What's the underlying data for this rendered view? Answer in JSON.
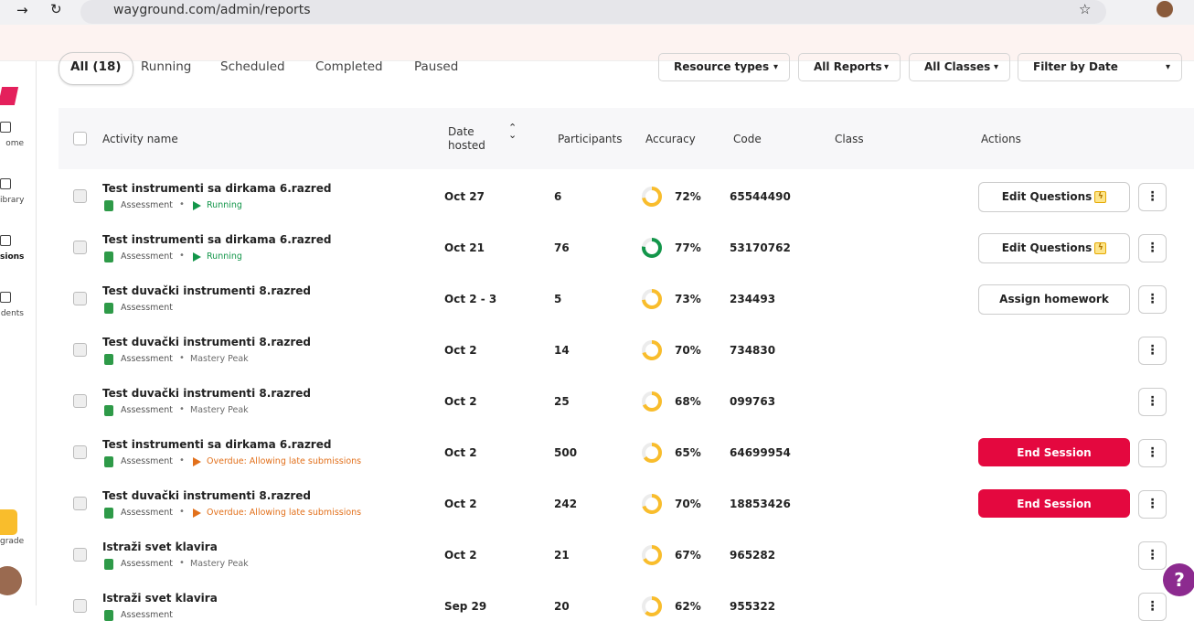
{
  "browser": {
    "url": "wayground.com/admin/reports"
  },
  "sidebar": {
    "items": [
      "ome",
      "ibrary",
      "sions",
      "dents"
    ],
    "upgrade": "grade"
  },
  "tabs": [
    "All (18)",
    "Running",
    "Scheduled",
    "Completed",
    "Paused"
  ],
  "filters": [
    "Resource types",
    "All Reports",
    "All Classes",
    "Filter by Date"
  ],
  "table": {
    "headers": [
      "Activity name",
      "Date hosted",
      "Participants",
      "Accuracy",
      "Code",
      "Class",
      "Actions"
    ],
    "rows": [
      {
        "name": "Test instrumenti sa dirkama 6.razred",
        "type": "Assessment",
        "status": {
          "text": "Running",
          "color": "#13964a",
          "play": true
        },
        "date": "Oct 27",
        "participants": "6",
        "accuracy": {
          "value": 72,
          "label": "72%",
          "color": "#f9bd2c"
        },
        "code": "65544490",
        "action": {
          "label": "Edit Questions",
          "style": "bolt"
        }
      },
      {
        "name": "Test instrumenti sa dirkama 6.razred",
        "type": "Assessment",
        "status": {
          "text": "Running",
          "color": "#13964a",
          "play": true
        },
        "date": "Oct 21",
        "participants": "76",
        "accuracy": {
          "value": 77,
          "label": "77%",
          "color": "#13964a"
        },
        "code": "53170762",
        "action": {
          "label": "Edit Questions",
          "style": "bolt"
        }
      },
      {
        "name": "Test duvački instrumenti 8.razred",
        "type": "Assessment",
        "status": null,
        "date": "Oct 2 - 3",
        "participants": "5",
        "accuracy": {
          "value": 73,
          "label": "73%",
          "color": "#f9bd2c"
        },
        "code": "234493",
        "action": {
          "label": "Assign homework",
          "style": "plain"
        }
      },
      {
        "name": "Test duvački instrumenti 8.razred",
        "type": "Assessment",
        "status": {
          "text": "Mastery Peak",
          "color": "#6b6b6b",
          "play": false
        },
        "date": "Oct 2",
        "participants": "14",
        "accuracy": {
          "value": 70,
          "label": "70%",
          "color": "#f9bd2c"
        },
        "code": "734830",
        "action": null
      },
      {
        "name": "Test duvački instrumenti 8.razred",
        "type": "Assessment",
        "status": {
          "text": "Mastery Peak",
          "color": "#6b6b6b",
          "play": false
        },
        "date": "Oct 2",
        "participants": "25",
        "accuracy": {
          "value": 68,
          "label": "68%",
          "color": "#f9bd2c"
        },
        "code": "099763",
        "action": null
      },
      {
        "name": "Test instrumenti sa dirkama 6.razred",
        "type": "Assessment",
        "status": {
          "text": "Overdue: Allowing late submissions",
          "color": "#e2701b",
          "play": true
        },
        "date": "Oct 2",
        "participants": "500",
        "accuracy": {
          "value": 65,
          "label": "65%",
          "color": "#f9bd2c"
        },
        "code": "64699954",
        "action": {
          "label": "End Session",
          "style": "danger"
        }
      },
      {
        "name": "Test duvački instrumenti 8.razred",
        "type": "Assessment",
        "status": {
          "text": "Overdue: Allowing late submissions",
          "color": "#e2701b",
          "play": true
        },
        "date": "Oct 2",
        "participants": "242",
        "accuracy": {
          "value": 70,
          "label": "70%",
          "color": "#f9bd2c"
        },
        "code": "18853426",
        "action": {
          "label": "End Session",
          "style": "danger"
        }
      },
      {
        "name": "Istraži svet klavira",
        "type": "Assessment",
        "status": {
          "text": "Mastery Peak",
          "color": "#6b6b6b",
          "play": false
        },
        "date": "Oct 2",
        "participants": "21",
        "accuracy": {
          "value": 67,
          "label": "67%",
          "color": "#f9bd2c"
        },
        "code": "965282",
        "action": null
      },
      {
        "name": "Istraži svet klavira",
        "type": "Assessment",
        "status": null,
        "date": "Sep 29",
        "participants": "20",
        "accuracy": {
          "value": 62,
          "label": "62%",
          "color": "#f9bd2c"
        },
        "code": "955322",
        "action": null
      }
    ]
  }
}
